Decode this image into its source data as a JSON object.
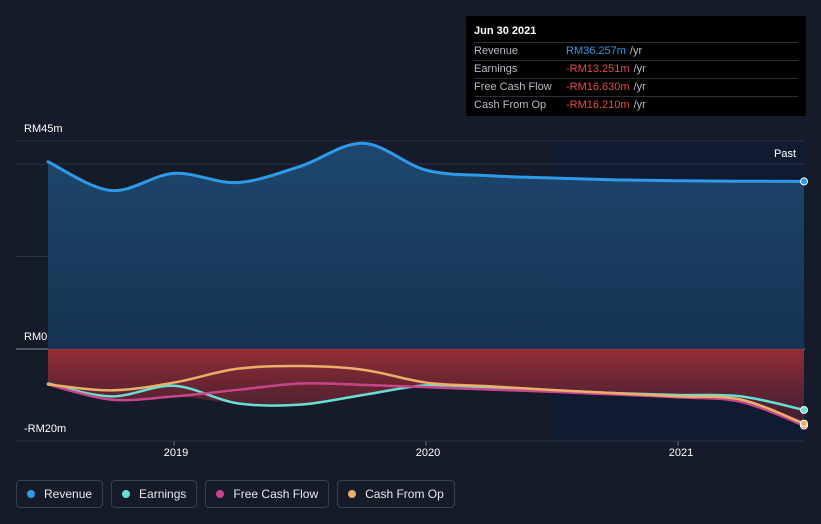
{
  "tooltip": {
    "date": "Jun 30 2021",
    "rows": [
      {
        "label": "Revenue",
        "value": "RM36.257m",
        "unit": "/yr",
        "color": "#2f9ae8"
      },
      {
        "label": "Earnings",
        "value": "-RM13.251m",
        "unit": "/yr",
        "color": "#e84a4a"
      },
      {
        "label": "Free Cash Flow",
        "value": "-RM16.630m",
        "unit": "/yr",
        "color": "#e84a4a"
      },
      {
        "label": "Cash From Op",
        "value": "-RM16.210m",
        "unit": "/yr",
        "color": "#e84a4a"
      }
    ]
  },
  "past_label": "Past",
  "legend": [
    {
      "label": "Revenue",
      "color": "#2f9ae8"
    },
    {
      "label": "Earnings",
      "color": "#65e0d2"
    },
    {
      "label": "Free Cash Flow",
      "color": "#c9458b"
    },
    {
      "label": "Cash From Op",
      "color": "#eab06a"
    }
  ],
  "chart_data": {
    "type": "line",
    "y_tick_labels": [
      "RM45m",
      "RM0",
      "-RM20m"
    ],
    "y_ticks": [
      45,
      0,
      -20
    ],
    "ylim": [
      -20,
      45
    ],
    "x_tick_labels": [
      "2019",
      "2020",
      "2021"
    ],
    "x_ticks": [
      2019.0,
      2020.0,
      2021.0
    ],
    "xlim": [
      2018.5,
      2021.5
    ],
    "highlight_from": 2020.5,
    "series": [
      {
        "name": "Revenue",
        "color": "#2f9ae8",
        "x": [
          2018.5,
          2018.75,
          2019.0,
          2019.25,
          2019.5,
          2019.75,
          2020.0,
          2020.25,
          2020.5,
          2020.75,
          2021.0,
          2021.25,
          2021.5
        ],
        "y": [
          40.5,
          34.3,
          38.0,
          36.0,
          39.5,
          44.5,
          38.7,
          37.5,
          37.0,
          36.6,
          36.4,
          36.3,
          36.257
        ]
      },
      {
        "name": "Earnings",
        "color": "#65e0d2",
        "x": [
          2018.5,
          2018.75,
          2019.0,
          2019.25,
          2019.5,
          2019.75,
          2020.0,
          2020.25,
          2020.5,
          2020.75,
          2021.0,
          2021.25,
          2021.5
        ],
        "y": [
          -7.5,
          -10.3,
          -8.0,
          -11.8,
          -12.1,
          -10.0,
          -7.9,
          -8.4,
          -9.0,
          -9.6,
          -10.0,
          -10.3,
          -13.251
        ]
      },
      {
        "name": "Free Cash Flow",
        "color": "#c9458b",
        "x": [
          2018.5,
          2018.75,
          2019.0,
          2019.25,
          2019.5,
          2019.75,
          2020.0,
          2020.25,
          2020.5,
          2020.75,
          2021.0,
          2021.25,
          2021.5
        ],
        "y": [
          -7.7,
          -11.0,
          -10.3,
          -8.9,
          -7.5,
          -7.8,
          -8.3,
          -8.8,
          -9.3,
          -9.9,
          -10.5,
          -11.5,
          -16.63
        ]
      },
      {
        "name": "Cash From Op",
        "color": "#eab06a",
        "x": [
          2018.5,
          2018.75,
          2019.0,
          2019.25,
          2019.5,
          2019.75,
          2020.0,
          2020.25,
          2020.5,
          2020.75,
          2021.0,
          2021.25,
          2021.5
        ],
        "y": [
          -7.7,
          -9.0,
          -7.3,
          -4.3,
          -3.7,
          -4.5,
          -7.3,
          -8.1,
          -8.9,
          -9.6,
          -10.3,
          -11.0,
          -16.21
        ]
      }
    ]
  }
}
